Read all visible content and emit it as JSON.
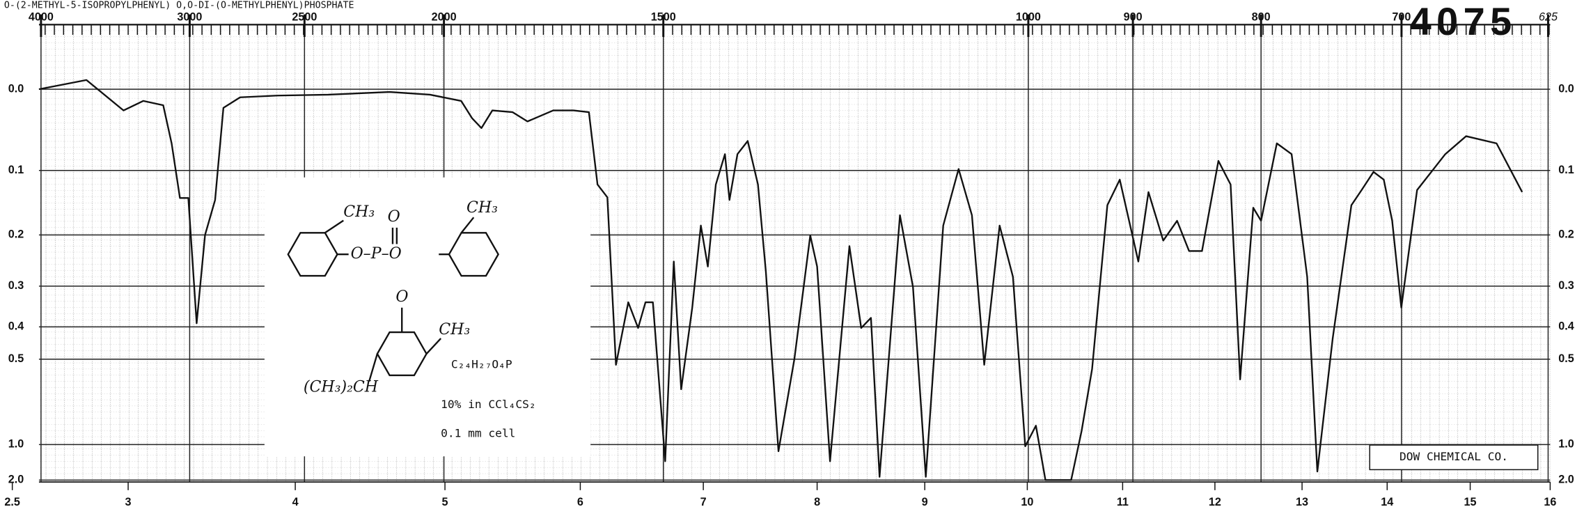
{
  "chart_data": {
    "type": "line",
    "title": "O-(2-METHYL-5-ISOPROPYLPHENYL) O,O-DI-(O-METHYLPHENYL)PHOSPHATE",
    "spectrum_number": "4075",
    "x": [
      2.615,
      2.82,
      2.98,
      3.09,
      3.21,
      3.26,
      3.31,
      3.36,
      3.41,
      3.46,
      3.52,
      3.57,
      3.67,
      3.89,
      4.22,
      4.63,
      4.9,
      5.12,
      5.2,
      5.27,
      5.35,
      5.5,
      5.61,
      5.8,
      5.95,
      6.07,
      6.14,
      6.22,
      6.29,
      6.39,
      6.47,
      6.53,
      6.59,
      6.69,
      6.76,
      6.82,
      6.91,
      6.98,
      7.04,
      7.11,
      7.19,
      7.23,
      7.3,
      7.39,
      7.48,
      7.55,
      7.66,
      7.8,
      7.94,
      8.0,
      8.12,
      8.3,
      8.41,
      8.5,
      8.58,
      8.77,
      8.89,
      9.01,
      9.18,
      9.33,
      9.46,
      9.58,
      9.73,
      9.86,
      9.98,
      10.09,
      10.19,
      10.46,
      10.57,
      10.68,
      10.84,
      10.97,
      11.17,
      11.28,
      11.44,
      11.59,
      11.72,
      11.86,
      12.04,
      12.18,
      12.29,
      12.44,
      12.53,
      12.71,
      12.88,
      13.06,
      13.18,
      13.36,
      13.58,
      13.7,
      13.84,
      13.96,
      14.06,
      14.17,
      14.36,
      14.7,
      14.95,
      15.33,
      15.65
    ],
    "values": [
      0.0,
      -0.01,
      0.024,
      0.013,
      0.018,
      0.064,
      0.14,
      0.14,
      0.39,
      0.2,
      0.143,
      0.021,
      0.009,
      0.007,
      0.006,
      0.003,
      0.006,
      0.013,
      0.033,
      0.045,
      0.024,
      0.026,
      0.037,
      0.024,
      0.024,
      0.026,
      0.12,
      0.139,
      0.52,
      0.337,
      0.403,
      0.337,
      0.337,
      1.24,
      0.249,
      0.62,
      0.35,
      0.184,
      0.259,
      0.12,
      0.078,
      0.143,
      0.078,
      0.061,
      0.12,
      0.269,
      1.08,
      0.5,
      0.201,
      0.259,
      1.24,
      0.22,
      0.403,
      0.376,
      1.74,
      0.167,
      0.302,
      1.74,
      0.184,
      0.098,
      0.167,
      0.52,
      0.184,
      0.28,
      1.02,
      0.83,
      2.0,
      2.0,
      0.87,
      0.536,
      0.151,
      0.113,
      0.249,
      0.131,
      0.21,
      0.176,
      0.229,
      0.229,
      0.087,
      0.12,
      0.577,
      0.155,
      0.176,
      0.064,
      0.078,
      0.28,
      1.5,
      0.433,
      0.151,
      0.128,
      0.102,
      0.113,
      0.176,
      0.35,
      0.128,
      0.078,
      0.055,
      0.064,
      0.131
    ],
    "color": "#111111",
    "xticks": [
      2.5,
      3,
      4,
      5,
      6,
      7,
      8,
      9,
      10,
      11,
      12,
      13,
      14,
      15,
      16
    ],
    "x2ticks": [
      4000,
      3000,
      2500,
      2000,
      1500,
      1000,
      900,
      800,
      700,
      625
    ],
    "ylim": [
      0,
      2
    ],
    "yticks": [
      {
        "value": 0,
        "label": "0.0"
      },
      0.1,
      0.2,
      0.3,
      0.4,
      0.5,
      {
        "value": 1,
        "label": "1.0"
      },
      {
        "value": 2,
        "label": "2.0"
      }
    ],
    "y_scale": "absorbance",
    "grid": true,
    "structure_labels": [
      "CH₃",
      "O",
      "O–P–O",
      "O",
      "CH₃",
      "CH₃",
      "(CH₃)₂CH"
    ],
    "annotations": {
      "formula": "C₂₄H₂₇O₄P",
      "solution": "10% in CCl₄CS₂",
      "cell": "0.1 mm cell",
      "credit": "DOW CHEMICAL CO."
    }
  }
}
